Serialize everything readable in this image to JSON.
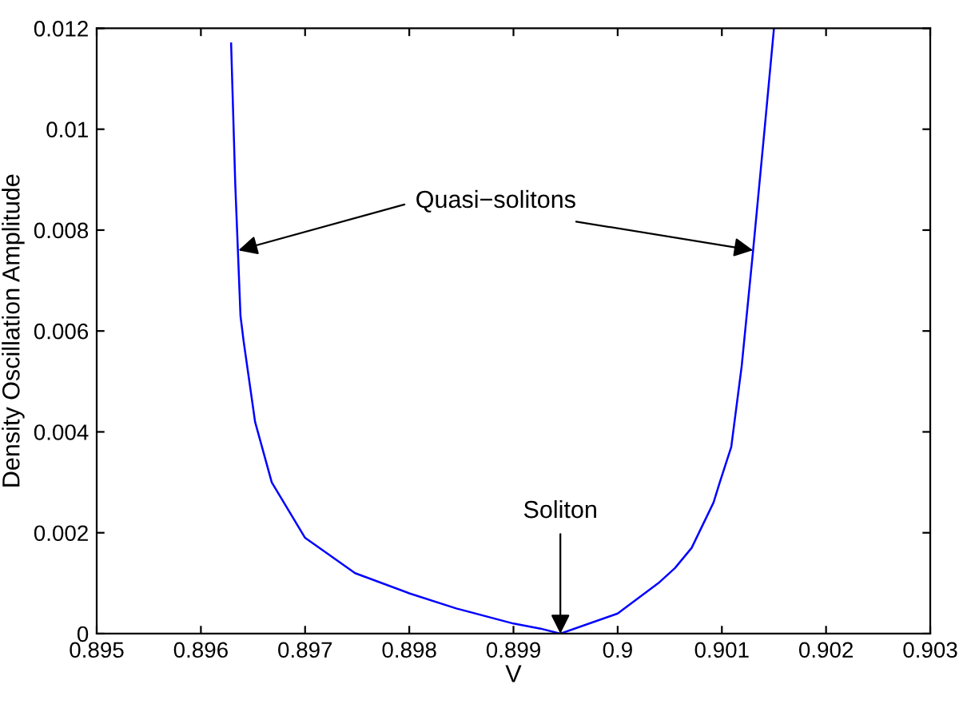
{
  "chart_data": {
    "type": "line",
    "xlabel": "V",
    "ylabel": "Density Oscillation Amplitude",
    "x": [
      0.89629,
      0.89633,
      0.89638,
      0.89641,
      0.89652,
      0.89668,
      0.897,
      0.89748,
      0.898,
      0.89845,
      0.899,
      0.89926,
      0.89945,
      0.9,
      0.90039,
      0.90055,
      0.90071,
      0.90092,
      0.90098,
      0.90109,
      0.90119,
      0.9013,
      0.90141,
      0.9015
    ],
    "series": [
      {
        "color": "#0000ff",
        "values": [
          0.0117,
          0.0089,
          0.0063,
          0.0058,
          0.0042,
          0.003,
          0.0019,
          0.0012,
          0.0008,
          0.0005,
          0.0002,
          0.0001,
          0.0,
          0.0004,
          0.001,
          0.0013,
          0.0017,
          0.0026,
          0.003,
          0.0037,
          0.0053,
          0.0076,
          0.01,
          0.012
        ]
      }
    ],
    "xlim": [
      0.895,
      0.903
    ],
    "ylim": [
      0,
      0.012
    ],
    "xticks": [
      0.895,
      0.896,
      0.897,
      0.898,
      0.899,
      0.9,
      0.901,
      0.902,
      0.903
    ],
    "yticks": [
      0,
      0.002,
      0.004,
      0.006,
      0.008,
      0.01,
      0.012
    ],
    "grid": false,
    "legend": false,
    "marker": "none",
    "line_style": "solid",
    "annotations": [
      {
        "text": "Quasi−solitons",
        "x": 0.89636,
        "y": 0.0076
      },
      {
        "text": "Soliton",
        "x": 0.89945,
        "y": 0.0
      }
    ]
  }
}
